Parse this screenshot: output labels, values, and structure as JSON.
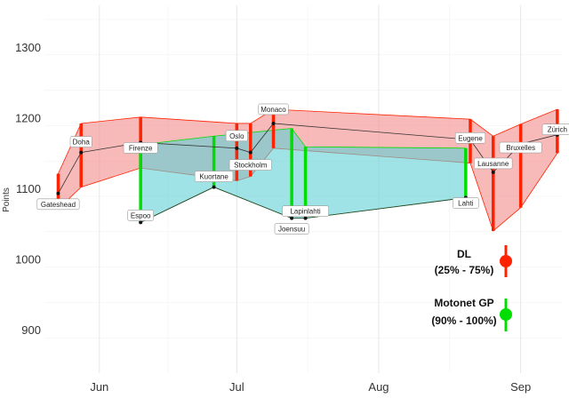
{
  "chart_data": {
    "type": "line",
    "title": "",
    "xlabel": "",
    "ylabel": "Points",
    "ylim": [
      840,
      1360
    ],
    "xlim": [
      "2021-05-20",
      "2021-09-10"
    ],
    "grid": true,
    "x_ticks": [
      {
        "date": "2021-06-01",
        "label": "Jun"
      },
      {
        "date": "2021-07-01",
        "label": "Jul"
      },
      {
        "date": "2021-08-01",
        "label": "Aug"
      },
      {
        "date": "2021-09-01",
        "label": "Sep"
      }
    ],
    "y_ticks": [
      900,
      1000,
      1100,
      1200,
      1300
    ],
    "series": [
      {
        "name": "DL",
        "band": "25% - 75%",
        "color": "#ff2200",
        "fill": "#f28080",
        "points": [
          {
            "date": "2021-05-23",
            "label": "Gateshead",
            "value": 1094,
            "low": 1072,
            "high": 1122
          },
          {
            "date": "2021-05-28",
            "label": "Doha",
            "value": 1152,
            "low": 1103,
            "high": 1193
          },
          {
            "date": "2021-06-10",
            "label": "Firenze",
            "value": 1166,
            "low": 1130,
            "high": 1202
          },
          {
            "date": "2021-07-01",
            "label": "Oslo",
            "value": 1158,
            "low": 1112,
            "high": 1193
          },
          {
            "date": "2021-07-04",
            "label": "Stockholm",
            "value": 1152,
            "low": 1118,
            "high": 1193
          },
          {
            "date": "2021-07-09",
            "label": "Monaco",
            "value": 1193,
            "low": 1158,
            "high": 1213
          },
          {
            "date": "2021-08-21",
            "label": "Eugene",
            "value": 1170,
            "low": 1137,
            "high": 1199
          },
          {
            "date": "2021-08-26",
            "label": "Lausanne",
            "value": 1124,
            "low": 1041,
            "high": 1175
          },
          {
            "date": "2021-09-01",
            "label": "Bruxelles",
            "value": 1164,
            "low": 1074,
            "high": 1192
          },
          {
            "date": "2021-09-09",
            "label": "Zürich",
            "value": 1177,
            "low": 1151,
            "high": 1213
          }
        ]
      },
      {
        "name": "Motonet GP",
        "band": "90% - 100%",
        "color": "#00dd00",
        "fill": "#5fd0d6",
        "points": [
          {
            "date": "2021-06-10",
            "label": "Espoo",
            "value": 1053,
            "low": 1053,
            "high": 1163
          },
          {
            "date": "2021-06-26",
            "label": "Kuortane",
            "value": 1103,
            "low": 1103,
            "high": 1175
          },
          {
            "date": "2021-07-13",
            "label": "Joensuu",
            "value": 1059,
            "low": 1059,
            "high": 1186
          },
          {
            "date": "2021-07-16",
            "label": "Lapinlahti",
            "value": 1059,
            "low": 1059,
            "high": 1160
          },
          {
            "date": "2021-08-20",
            "label": "Lahti",
            "value": 1088,
            "low": 1088,
            "high": 1158
          }
        ]
      }
    ]
  },
  "legend": {
    "dl": {
      "name": "DL",
      "range": "(25% - 75%)",
      "color": "#ff2200"
    },
    "motonet": {
      "name": "Motonet GP",
      "range": "(90% - 100%)",
      "color": "#00dd00"
    }
  }
}
